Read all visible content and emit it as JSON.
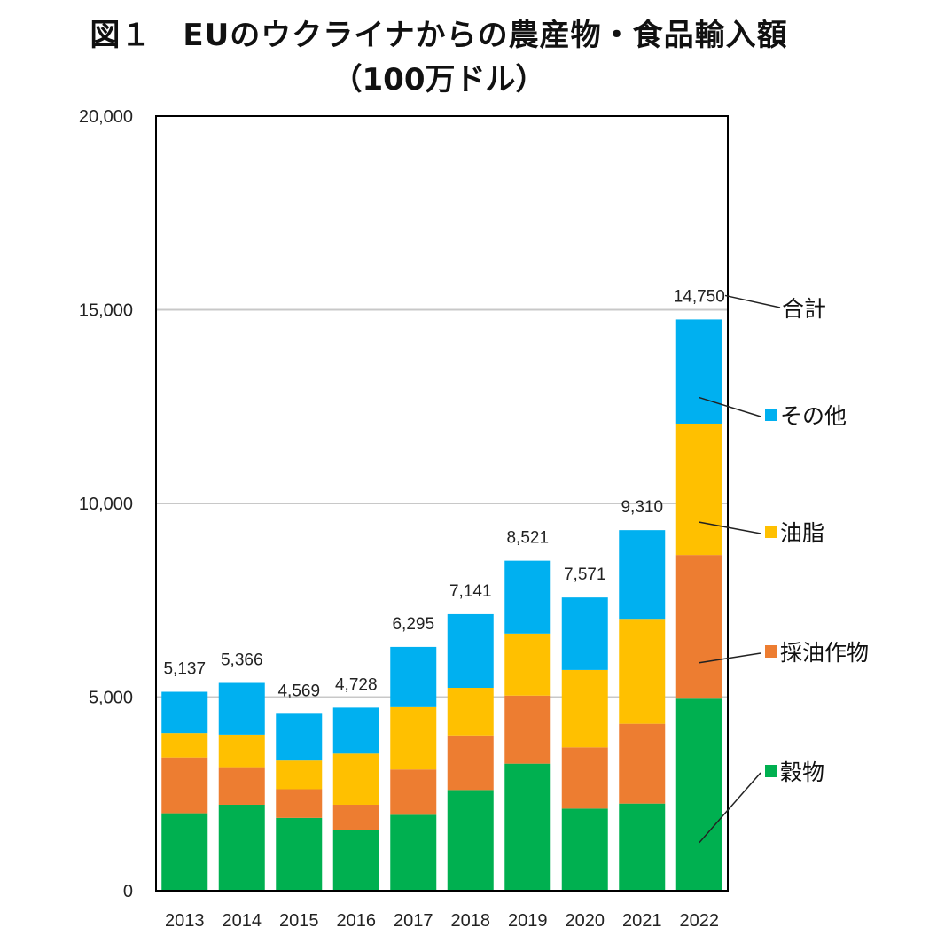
{
  "title": {
    "line1": "図１　EUのウクライナからの農産物・食品輸入額",
    "line2": "（100万ドル）"
  },
  "chart_data": {
    "type": "bar",
    "stacked": true,
    "categories": [
      "2013",
      "2014",
      "2015",
      "2016",
      "2017",
      "2018",
      "2019",
      "2020",
      "2021",
      "2022"
    ],
    "series": [
      {
        "name": "穀物",
        "color": "#00B050",
        "values": [
          2000,
          2220,
          1880,
          1560,
          1960,
          2600,
          3280,
          2120,
          2250,
          4960
        ]
      },
      {
        "name": "採油作物",
        "color": "#ED7D31",
        "values": [
          1440,
          970,
          740,
          660,
          1170,
          1410,
          1760,
          1580,
          2060,
          3710
        ]
      },
      {
        "name": "油脂",
        "color": "#FFC000",
        "values": [
          630,
          840,
          740,
          1320,
          1610,
          1230,
          1600,
          2000,
          2710,
          3390
        ]
      },
      {
        "name": "その他",
        "color": "#00B0F0",
        "values": [
          1067,
          1336,
          1209,
          1188,
          1555,
          1901,
          1881,
          1871,
          2290,
          2690
        ]
      }
    ],
    "totals": [
      5137,
      5366,
      4569,
      4728,
      6295,
      7141,
      8521,
      7571,
      9310,
      14750
    ],
    "total_labels": [
      "5,137",
      "5,366",
      "4,569",
      "4,728",
      "6,295",
      "7,141",
      "8,521",
      "7,571",
      "9,310",
      "14,750"
    ],
    "total_name": "合計",
    "ylim": [
      0,
      20000
    ],
    "yticks": [
      0,
      5000,
      10000,
      15000,
      20000
    ],
    "ytick_labels": [
      "0",
      "5,000",
      "10,000",
      "15,000",
      "20,000"
    ],
    "grid": true,
    "legend": "right"
  }
}
